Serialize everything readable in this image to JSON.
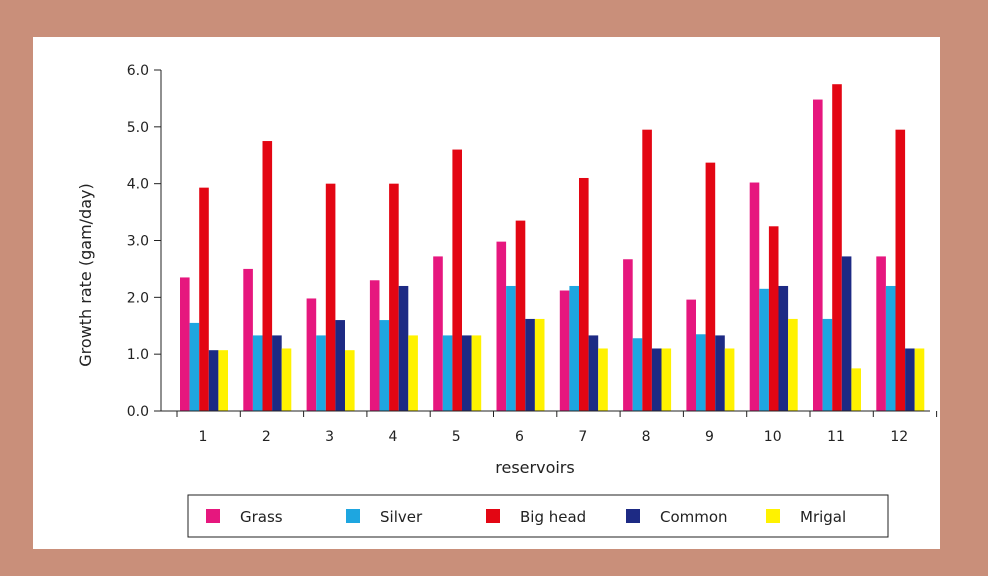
{
  "chart_data": {
    "type": "bar",
    "xlabel": "reservoirs",
    "ylabel": "Growth rate (gam/day)",
    "ylim": [
      0,
      6
    ],
    "yticks": [
      "0.0",
      "1.0",
      "2.0",
      "3.0",
      "4.0",
      "5.0",
      "6.0"
    ],
    "categories": [
      "1",
      "2",
      "3",
      "4",
      "5",
      "6",
      "7",
      "8",
      "9",
      "10",
      "11",
      "12"
    ],
    "legend_position": "bottom",
    "grid": false,
    "series": [
      {
        "name": "Grass",
        "color": "#e6177e",
        "values": [
          2.35,
          2.5,
          1.98,
          2.3,
          2.72,
          2.98,
          2.12,
          2.67,
          1.96,
          4.02,
          5.48,
          2.72
        ]
      },
      {
        "name": "Silver",
        "color": "#1ea6e0",
        "values": [
          1.55,
          1.33,
          1.33,
          1.6,
          1.33,
          2.2,
          2.2,
          1.28,
          1.35,
          2.15,
          1.62,
          2.2
        ]
      },
      {
        "name": "Big head",
        "color": "#e30613",
        "values": [
          3.93,
          4.75,
          4.0,
          4.0,
          4.6,
          3.35,
          4.1,
          4.95,
          4.37,
          3.25,
          5.75,
          4.95
        ]
      },
      {
        "name": "Common",
        "color": "#1d2a84",
        "values": [
          1.07,
          1.33,
          1.6,
          2.2,
          1.33,
          1.62,
          1.33,
          1.1,
          1.33,
          2.2,
          2.72,
          1.1
        ]
      },
      {
        "name": "Mrigal",
        "color": "#fff200",
        "values": [
          1.07,
          1.1,
          1.07,
          1.33,
          1.33,
          1.62,
          1.1,
          1.1,
          1.1,
          1.62,
          0.75,
          1.1
        ]
      }
    ]
  }
}
